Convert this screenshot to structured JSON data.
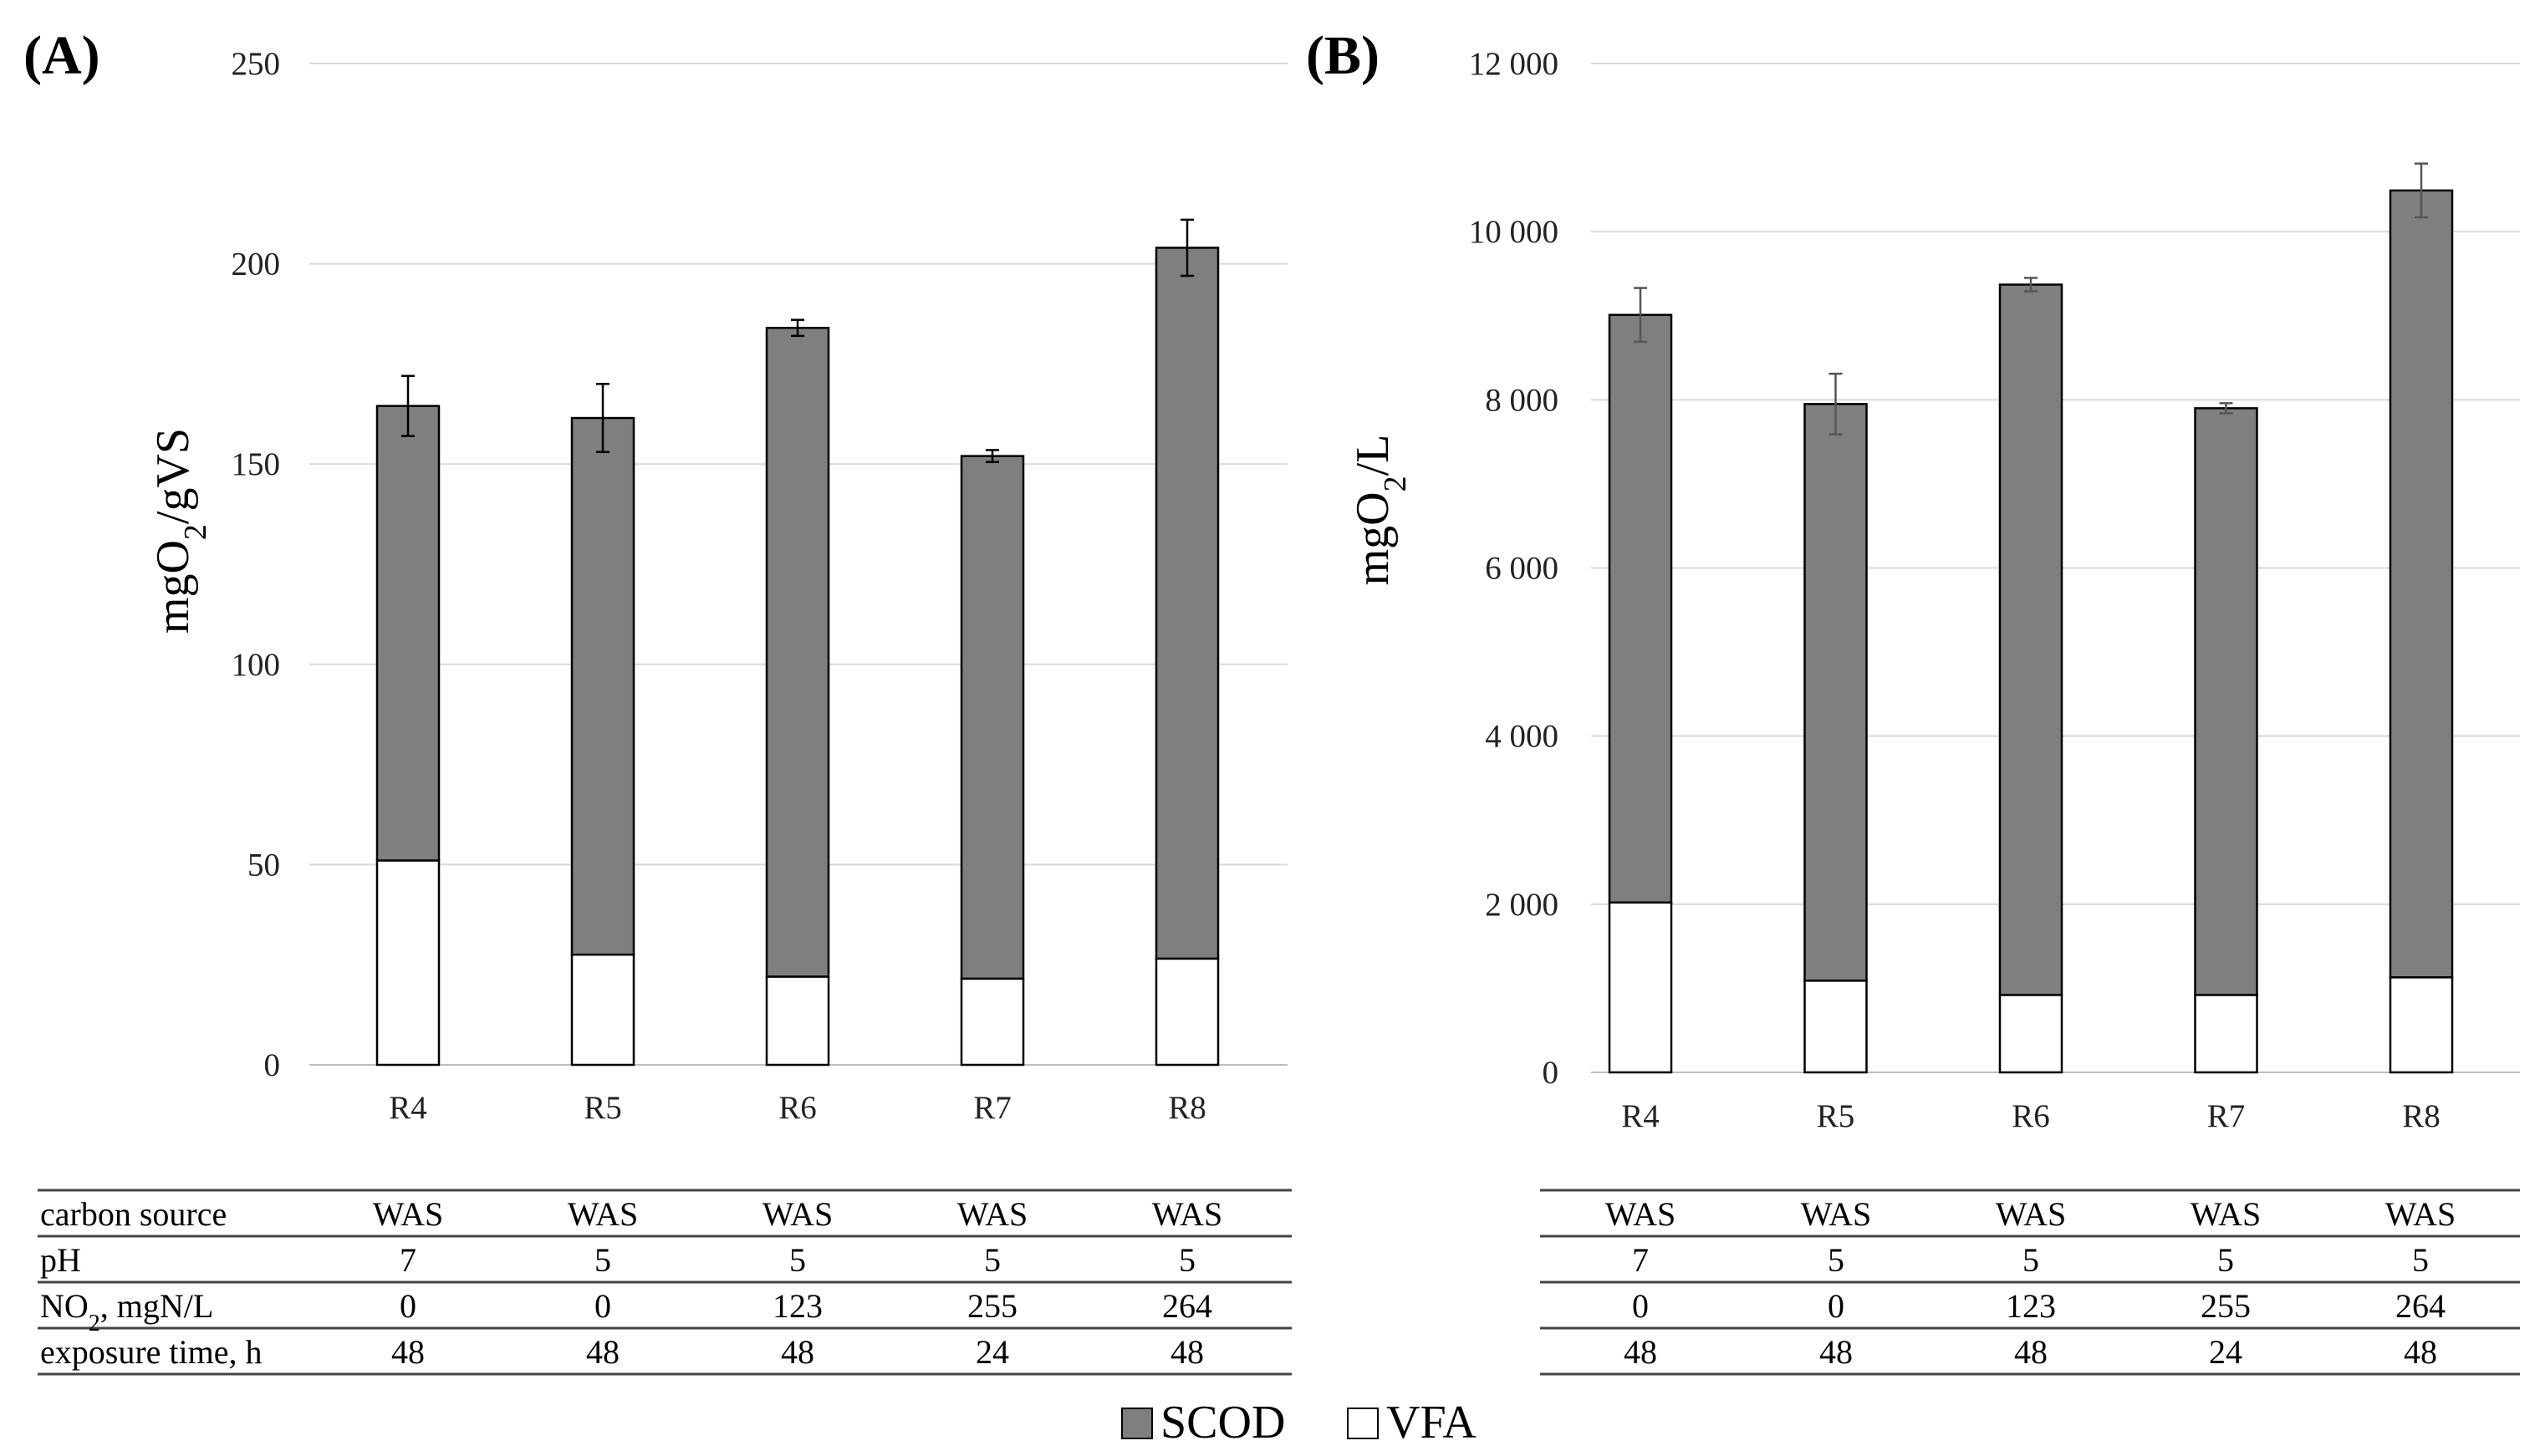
{
  "chart_data": [
    {
      "panel": "(A)",
      "type": "bar",
      "stacked": true,
      "ylabel_parts": {
        "pre": "mgO",
        "sub": "2",
        "post": "/gVS"
      },
      "ylim": [
        0,
        250
      ],
      "yticks": [
        0,
        50,
        100,
        150,
        200,
        250
      ],
      "ytick_labels": [
        "0",
        "50",
        "100",
        "150",
        "200",
        "250"
      ],
      "categories": [
        "R4",
        "R5",
        "R6",
        "R7",
        "R8"
      ],
      "series": [
        {
          "name": "VFA",
          "values": [
            51,
            27.5,
            22,
            21.5,
            26.5
          ]
        },
        {
          "name": "SCOD",
          "values": [
            113.5,
            134,
            162,
            130.5,
            177.5
          ]
        }
      ],
      "totals": [
        164.5,
        161.5,
        184,
        152,
        204
      ],
      "error_bars": [
        7.5,
        8.5,
        2,
        1.5,
        7
      ],
      "grid": true
    },
    {
      "panel": "(B)",
      "type": "bar",
      "stacked": true,
      "ylabel_parts": {
        "pre": "mgO",
        "sub": "2",
        "post": "/L"
      },
      "ylim": [
        0,
        12000
      ],
      "yticks": [
        0,
        2000,
        4000,
        6000,
        8000,
        10000,
        12000
      ],
      "ytick_labels": [
        "0",
        "2 000",
        "4 000",
        "6 000",
        "8 000",
        "10 000",
        "12 000"
      ],
      "categories": [
        "R4",
        "R5",
        "R6",
        "R7",
        "R8"
      ],
      "series": [
        {
          "name": "VFA",
          "values": [
            2020,
            1090,
            920,
            920,
            1130
          ]
        },
        {
          "name": "SCOD",
          "values": [
            6990,
            6860,
            8450,
            6980,
            9360
          ]
        }
      ],
      "totals": [
        9010,
        7950,
        9370,
        7900,
        10490
      ],
      "error_bars": [
        320,
        360,
        80,
        60,
        320
      ],
      "grid": true
    }
  ],
  "table_a": {
    "rows": [
      {
        "label": "carbon source",
        "values": [
          "WAS",
          "WAS",
          "WAS",
          "WAS",
          "WAS"
        ]
      },
      {
        "label": "pH",
        "values": [
          "7",
          "5",
          "5",
          "5",
          "5"
        ]
      },
      {
        "label_parts": {
          "pre": "NO",
          "sub": "2",
          "post": ", mgN/L"
        },
        "values": [
          "0",
          "0",
          "123",
          "255",
          "264"
        ]
      },
      {
        "label": "exposure time, h",
        "values": [
          "48",
          "48",
          "48",
          "24",
          "48"
        ]
      }
    ]
  },
  "table_b": {
    "rows": [
      {
        "values": [
          "WAS",
          "WAS",
          "WAS",
          "WAS",
          "WAS"
        ]
      },
      {
        "values": [
          "7",
          "5",
          "5",
          "5",
          "5"
        ]
      },
      {
        "values": [
          "0",
          "0",
          "123",
          "255",
          "264"
        ]
      },
      {
        "values": [
          "48",
          "48",
          "48",
          "24",
          "48"
        ]
      }
    ]
  },
  "legend": {
    "items": [
      {
        "label": "SCOD",
        "color": "#7f7f7f"
      },
      {
        "label": "VFA",
        "color": "#ffffff"
      }
    ]
  },
  "colors": {
    "scod": "#7f7f7f",
    "vfa": "#ffffff",
    "grid": "#d9d9d9",
    "axis": "#bfbfbf",
    "bar_edge": "#000000"
  }
}
